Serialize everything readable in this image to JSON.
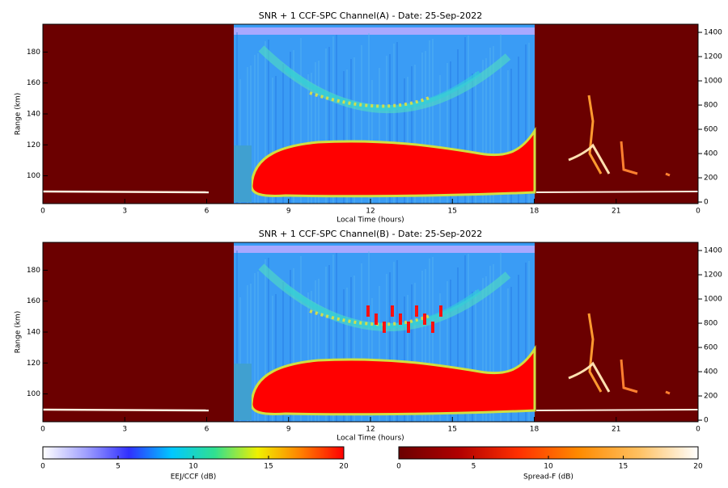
{
  "chart_data": [
    {
      "type": "heatmap",
      "title": "SNR + 1 CCF-SPC Channel(A) - Date: 25-Sep-2022",
      "x_label": "Local Time (hours)",
      "y_label": "Range (km)",
      "xlim": [
        0,
        24
      ],
      "xticks": [
        0,
        3,
        6,
        9,
        12,
        15,
        18,
        21,
        {
          "value": 24,
          "label": "0"
        }
      ],
      "ylim": [
        82,
        198
      ],
      "yticks": [
        100,
        120,
        140,
        160,
        180
      ],
      "y2lim": [
        -13,
        1467
      ],
      "y2ticks": [
        0,
        200,
        400,
        600,
        800,
        1000,
        1200,
        1400
      ]
    },
    {
      "type": "heatmap",
      "title": "SNR + 1 CCF-SPC Channel(B) - Date: 25-Sep-2022",
      "x_label": "Local Time (hours)",
      "y_label": "Range (km)",
      "xlim": [
        0,
        24
      ],
      "xticks": [
        0,
        3,
        6,
        9,
        12,
        15,
        18,
        21,
        {
          "value": 24,
          "label": "0"
        }
      ],
      "ylim": [
        82,
        198
      ],
      "yticks": [
        100,
        120,
        140,
        160,
        180
      ],
      "y2lim": [
        -13,
        1467
      ],
      "y2ticks": [
        0,
        200,
        400,
        600,
        800,
        1000,
        1200,
        1400
      ]
    }
  ],
  "colorbars": [
    {
      "label": "EEJ/CCF (dB)",
      "lim": [
        0,
        20
      ],
      "ticks": [
        0,
        5,
        10,
        15,
        20
      ],
      "colors": [
        "#ffffff",
        "#a0a0ff",
        "#3030ff",
        "#00c8ff",
        "#30e090",
        "#f0f000",
        "#ff8000",
        "#ff0000"
      ]
    },
    {
      "label": "Spread-F (dB)",
      "lim": [
        0,
        20
      ],
      "ticks": [
        0,
        5,
        10,
        15,
        20
      ],
      "colors": [
        "#6b0000",
        "#b00000",
        "#ff3000",
        "#ff8a00",
        "#ffc060",
        "#ffffff"
      ]
    }
  ]
}
